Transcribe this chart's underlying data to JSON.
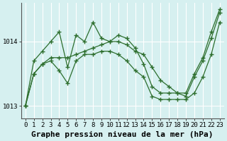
{
  "title": "Graphe pression niveau de la mer (hPa)",
  "background_color": "#d6f0f0",
  "line_color": "#2d6e2d",
  "grid_color": "#ffffff",
  "x_labels": [
    "0",
    "1",
    "2",
    "3",
    "4",
    "5",
    "6",
    "7",
    "8",
    "9",
    "10",
    "11",
    "12",
    "13",
    "14",
    "15",
    "16",
    "17",
    "18",
    "19",
    "20",
    "21",
    "22",
    "23"
  ],
  "hours": [
    0,
    1,
    2,
    3,
    4,
    5,
    6,
    7,
    8,
    9,
    10,
    11,
    12,
    13,
    14,
    15,
    16,
    17,
    18,
    19,
    20,
    21,
    22,
    23
  ],
  "mean_series": [
    1013.0,
    1013.5,
    1013.65,
    1013.75,
    1013.75,
    1013.75,
    1013.8,
    1013.85,
    1013.9,
    1013.95,
    1014.0,
    1014.0,
    1013.95,
    1013.85,
    1013.8,
    1013.6,
    1013.4,
    1013.3,
    1013.2,
    1013.15,
    1013.45,
    1013.7,
    1014.05,
    1014.45
  ],
  "max_series": [
    1013.0,
    1013.7,
    1013.85,
    1014.0,
    1014.15,
    1013.6,
    1014.1,
    1014.0,
    1014.3,
    1014.05,
    1014.0,
    1014.1,
    1014.05,
    1013.9,
    1013.65,
    1013.3,
    1013.2,
    1013.2,
    1013.2,
    1013.2,
    1013.5,
    1013.75,
    1014.15,
    1014.5
  ],
  "min_series": [
    1013.0,
    1013.5,
    1013.65,
    1013.7,
    1013.55,
    1013.35,
    1013.7,
    1013.8,
    1013.8,
    1013.85,
    1013.85,
    1013.8,
    1013.7,
    1013.55,
    1013.45,
    1013.15,
    1013.1,
    1013.1,
    1013.1,
    1013.1,
    1013.2,
    1013.45,
    1013.8,
    1014.3
  ],
  "ylim": [
    1012.8,
    1014.6
  ],
  "yticks": [
    1013,
    1014
  ],
  "title_fontsize": 8,
  "tick_fontsize": 6.5
}
